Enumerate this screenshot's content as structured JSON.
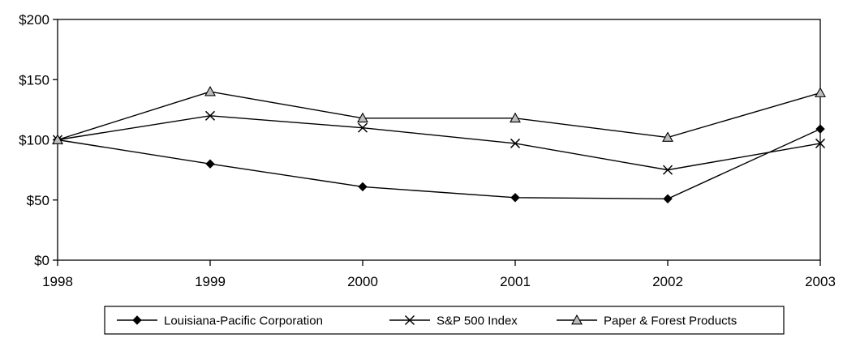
{
  "chart_data": {
    "type": "line",
    "x": [
      "1998",
      "1999",
      "2000",
      "2001",
      "2002",
      "2003"
    ],
    "ylim": [
      0,
      200
    ],
    "y_ticks": [
      "$0",
      "$50",
      "$100",
      "$150",
      "$200"
    ],
    "y_tick_values": [
      0,
      50,
      100,
      150,
      200
    ],
    "grid": false,
    "legend_position": "bottom",
    "series": [
      {
        "name": "Louisiana-Pacific Corporation",
        "values": [
          100,
          80,
          61,
          52,
          51,
          109
        ],
        "marker": "diamond",
        "color": "#000000"
      },
      {
        "name": "S&P 500 Index",
        "values": [
          100,
          120,
          110,
          97,
          75,
          97
        ],
        "marker": "x",
        "color": "#000000"
      },
      {
        "name": "Paper & Forest Products",
        "values": [
          100,
          140,
          118,
          118,
          102,
          139
        ],
        "marker": "triangle",
        "color": "#000000"
      }
    ]
  }
}
